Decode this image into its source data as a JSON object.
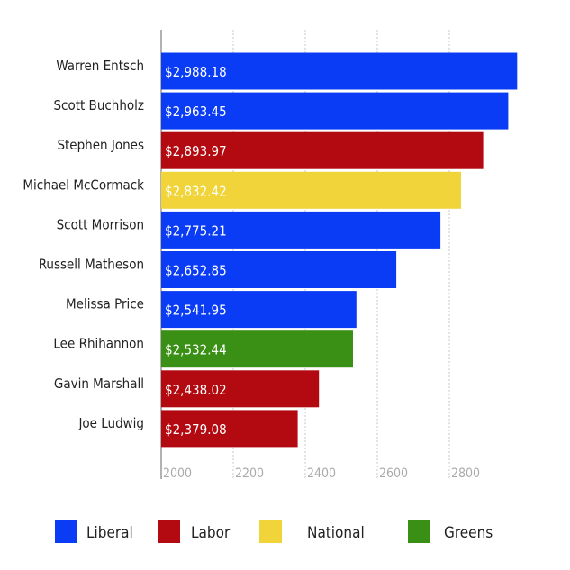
{
  "colors": {
    "Liberal": "#0a3cf6",
    "Labor": "#b20a10",
    "National": "#f0d43a",
    "Greens": "#3a8f15"
  },
  "chart_data": {
    "type": "bar",
    "orientation": "horizontal",
    "categories": [
      "Warren Entsch",
      "Scott Buchholz",
      "Stephen Jones",
      "Michael McCormack",
      "Scott Morrison",
      "Russell Matheson",
      "Melissa Price",
      "Lee Rhihannon",
      "Gavin Marshall",
      "Joe Ludwig"
    ],
    "values": [
      2988.18,
      2963.45,
      2893.97,
      2832.42,
      2775.21,
      2652.85,
      2541.95,
      2532.44,
      2438.02,
      2379.08
    ],
    "value_labels": [
      "$2,988.18",
      "$2,963.45",
      "$2,893.97",
      "$2,832.42",
      "$2,775.21",
      "$2,652.85",
      "$2,541.95",
      "$2,532.44",
      "$2,438.02",
      "$2,379.08"
    ],
    "party": [
      "Liberal",
      "Liberal",
      "Labor",
      "National",
      "Liberal",
      "Liberal",
      "Liberal",
      "Greens",
      "Labor",
      "Labor"
    ],
    "xlim": [
      2000,
      2980
    ],
    "xticks": [
      2000,
      2200,
      2400,
      2600,
      2800
    ],
    "xtick_labels": [
      "2000",
      "2200",
      "2400",
      "2600",
      "2800"
    ],
    "grid": "vertical dotted",
    "legend": {
      "placement": "bottom",
      "entries": [
        "Liberal",
        "Labor",
        "National",
        "Greens"
      ]
    },
    "title": "",
    "xlabel": "",
    "ylabel": ""
  }
}
